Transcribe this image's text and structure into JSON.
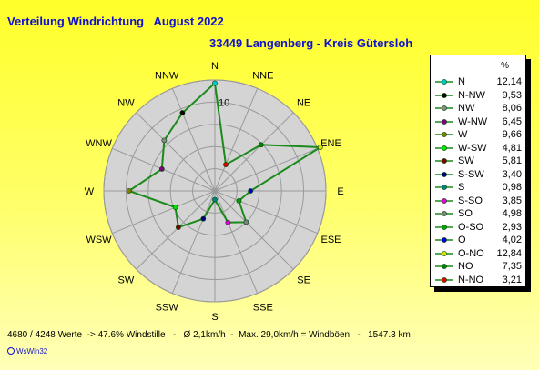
{
  "title": "Verteilung Windrichtung   August 2022",
  "subtitle": "33449 Langenberg - Kreis Gütersloh",
  "footer": "4680 / 4248 Werte  -> 47.6% Windstille   -   Ø 2,1km/h  -  Max. 29,0km/h = Windböen   -   1547.3 km",
  "credit": "WsWin32",
  "legend_unit": "%",
  "colors": {
    "line": "#1a8a1a",
    "background": "#d4d4d4",
    "grid": "#9a9a9a",
    "title": "#1010d0"
  },
  "chart_data": {
    "type": "radar",
    "direction_labels": [
      "N",
      "NNE",
      "NE",
      "ENE",
      "E",
      "ESE",
      "SE",
      "SSE",
      "S",
      "SSW",
      "SW",
      "WSW",
      "W",
      "WNW",
      "NW",
      "NNW"
    ],
    "ring_values": [
      2.5,
      5,
      7.5,
      10,
      12.5
    ],
    "ring_label": "10",
    "rmax": 12.5,
    "grid": true,
    "legend_position": "right",
    "series": [
      {
        "name": "N",
        "angle": 0,
        "value": 12.14,
        "color": "#00c8c8"
      },
      {
        "name": "N-NW",
        "angle": 337.5,
        "value": 9.53,
        "color": "#000000"
      },
      {
        "name": "NW",
        "angle": 315,
        "value": 8.06,
        "color": "#888888"
      },
      {
        "name": "W-NW",
        "angle": 292.5,
        "value": 6.45,
        "color": "#800080"
      },
      {
        "name": "W",
        "angle": 270,
        "value": 9.66,
        "color": "#808000"
      },
      {
        "name": "W-SW",
        "angle": 247.5,
        "value": 4.81,
        "color": "#00e000"
      },
      {
        "name": "SW",
        "angle": 225,
        "value": 5.81,
        "color": "#800000"
      },
      {
        "name": "S-SW",
        "angle": 202.5,
        "value": 3.4,
        "color": "#000080"
      },
      {
        "name": "S",
        "angle": 180,
        "value": 0.98,
        "color": "#008080"
      },
      {
        "name": "S-SO",
        "angle": 157.5,
        "value": 3.85,
        "color": "#e000e0"
      },
      {
        "name": "SO",
        "angle": 135,
        "value": 4.98,
        "color": "#808080"
      },
      {
        "name": "O-SO",
        "angle": 112.5,
        "value": 2.93,
        "color": "#00a000"
      },
      {
        "name": "O",
        "angle": 90,
        "value": 4.02,
        "color": "#0000e0"
      },
      {
        "name": "O-NO",
        "angle": 67.5,
        "value": 12.84,
        "color": "#e0e000"
      },
      {
        "name": "NO",
        "angle": 45,
        "value": 7.35,
        "color": "#008000"
      },
      {
        "name": "N-NO",
        "angle": 22.5,
        "value": 3.21,
        "color": "#e00000"
      }
    ]
  }
}
